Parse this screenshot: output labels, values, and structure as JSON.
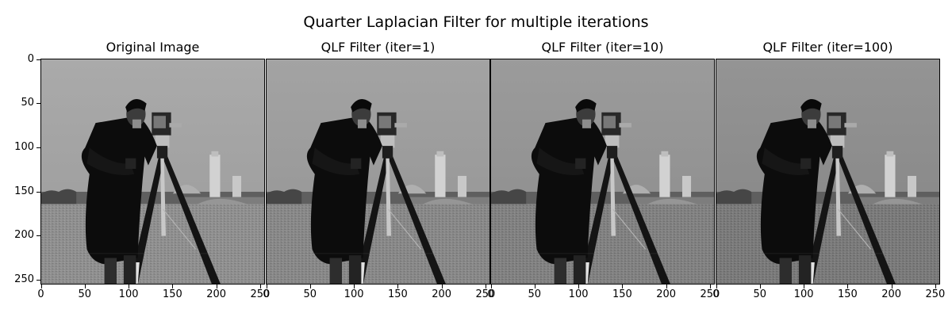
{
  "figure": {
    "title": "Quarter Laplacian Filter for multiple iterations",
    "panels": [
      {
        "title": "Original Image",
        "image": "cameraman-photo",
        "tone": 1.0
      },
      {
        "title": "QLF Filter (iter=1)",
        "image": "cameraman-photo",
        "tone": 0.95
      },
      {
        "title": "QLF Filter (iter=10)",
        "image": "cameraman-photo",
        "tone": 0.9
      },
      {
        "title": "QLF Filter (iter=100)",
        "image": "cameraman-photo",
        "tone": 0.85
      }
    ],
    "y_ticks": [
      "0",
      "50",
      "100",
      "150",
      "200",
      "250"
    ],
    "x_ticks": [
      "0",
      "50",
      "100",
      "150",
      "200",
      "250"
    ],
    "axis_range": [
      0,
      256
    ]
  }
}
